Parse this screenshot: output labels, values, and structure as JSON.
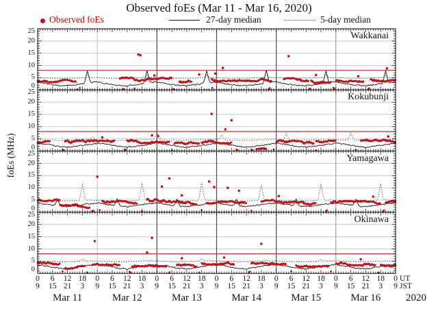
{
  "header": {
    "title": "Observed foEs (Mar 11 - Mar 16, 2020)"
  },
  "legend": {
    "observed_label": "Observed foEs",
    "median27_label": "27-day median",
    "median5_label": "5-day median"
  },
  "axes": {
    "ylabel": "foEs (MHz)",
    "ylim": [
      0,
      25
    ],
    "ytick_values": [
      0,
      5,
      10,
      15,
      20,
      25
    ],
    "ytick_labels": [
      "0",
      "5",
      "10",
      "15",
      "20",
      "25"
    ],
    "xlim_hours": [
      0,
      144
    ],
    "ut_row": [
      "0",
      "6",
      "12",
      "18",
      "0",
      "6",
      "12",
      "18",
      "0",
      "6",
      "12",
      "18",
      "0",
      "6",
      "12",
      "18",
      "0",
      "6",
      "12",
      "18",
      "0",
      "6",
      "12",
      "18",
      "0"
    ],
    "jst_row": [
      "9",
      "15",
      "21",
      "3",
      "9",
      "15",
      "21",
      "3",
      "9",
      "15",
      "21",
      "3",
      "9",
      "15",
      "21",
      "3",
      "9",
      "15",
      "21",
      "3",
      "9",
      "15",
      "21",
      "3",
      "9"
    ],
    "tz_labels": [
      "UT",
      "JST"
    ],
    "day_labels": [
      "Mar 11",
      "Mar 12",
      "Mar 13",
      "Mar 14",
      "Mar 15",
      "Mar 16"
    ],
    "year": "2020"
  },
  "style": {
    "observed_color": "#c81018",
    "legend_text_color": "#c00000",
    "median27_color": "#111111",
    "median5_color": "#333333",
    "threshold_color": "#ab3535",
    "grid_light": "#cfc6c6",
    "grid_dotted": "#666666",
    "day_line_colors": [
      "#bdbdbd",
      "#4a4a4a",
      "#4a4a4a",
      "#4a4a4a",
      "#8d8d8d"
    ]
  },
  "chart_data": {
    "type": "scatter",
    "title": "Observed foEs (Mar 11 - Mar 16, 2020)",
    "x_range_hours": [
      0,
      144
    ],
    "x_tick_step_hours": 6,
    "y_unit": "MHz",
    "y_range": [
      0,
      25
    ],
    "dotted_gridline_mhz": 5,
    "light_gridlines_mhz": [
      10,
      15,
      20
    ],
    "panels": [
      {
        "station": "Wakkanai",
        "threshold_mhz": 8,
        "median27": {
          "daily_cycle_4h": [
            3.3,
            2.5,
            1.9,
            1.7,
            2.2,
            2.9
          ],
          "spikes": [
            [
              20,
              7.8
            ],
            [
              44,
              7.9
            ],
            [
              68,
              7.8
            ],
            [
              92,
              8.0
            ],
            [
              116,
              7.7
            ],
            [
              140,
              7.8
            ]
          ]
        },
        "median5": {
          "daily_cycle_4h": [
            5.0,
            4.85,
            4.75,
            4.8,
            4.9,
            5.1
          ],
          "spikes": [
            [
              20,
              6.2
            ],
            [
              44,
              6.0
            ],
            [
              68,
              6.1
            ],
            [
              92,
              6.3
            ],
            [
              116,
              6.0
            ],
            [
              140,
              6.1
            ]
          ]
        },
        "observed_bands": [
          [
            0,
            15.5,
            3.2,
            4.3
          ],
          [
            33,
            54,
            3.6,
            5.0
          ],
          [
            57,
            62,
            2.5,
            3.8
          ],
          [
            70,
            94,
            3.6,
            4.7
          ],
          [
            99,
            109,
            3.6,
            4.8
          ],
          [
            110,
            118,
            2.4,
            4.0
          ],
          [
            120,
            131,
            3.4,
            4.4
          ],
          [
            134,
            144,
            3.5,
            4.8
          ]
        ],
        "observed_low": [
          16,
          17,
          34.5,
          39,
          54.5,
          70.3,
          93,
          109.5,
          119,
          133
        ],
        "observed_outliers": [
          [
            40.5,
            14.5
          ],
          [
            41.3,
            14.2
          ],
          [
            74.5,
            9.0
          ],
          [
            101,
            13.8
          ],
          [
            65,
            6.3
          ],
          [
            71.5,
            6.7
          ],
          [
            112,
            6.1
          ],
          [
            140.5,
            8.8
          ],
          [
            47,
            5.9
          ],
          [
            129,
            5.6
          ]
        ]
      },
      {
        "station": "Kokubunji",
        "threshold_mhz": 8,
        "median27": {
          "daily_cycle_4h": [
            3.2,
            2.8,
            2.0,
            1.6,
            2.1,
            2.6
          ],
          "spikes": [
            [
              48,
              4.3
            ]
          ]
        },
        "median5": {
          "daily_cycle_4h": [
            4.7,
            4.5,
            4.35,
            4.4,
            4.55,
            4.7
          ],
          "spikes": [
            [
              22,
              5.8
            ],
            [
              48,
              7.8
            ],
            [
              74,
              6.6
            ],
            [
              100,
              7.3
            ],
            [
              126,
              7.4
            ]
          ]
        },
        "observed_bands": [
          [
            0,
            5,
            3.0,
            4.1
          ],
          [
            11,
            31,
            2.8,
            4.4
          ],
          [
            36,
            53,
            3.3,
            4.7
          ],
          [
            55,
            65,
            2.9,
            3.9
          ],
          [
            66,
            78,
            3.1,
            4.3
          ],
          [
            88,
            92,
            0.2,
            1.2
          ],
          [
            96,
            111,
            3.2,
            4.4
          ],
          [
            112,
            120,
            3.6,
            4.6
          ],
          [
            130,
            144,
            3.3,
            4.6
          ]
        ],
        "observed_low": [
          10,
          35,
          54,
          80,
          86,
          95,
          112,
          128
        ],
        "observed_outliers": [
          [
            70,
            15.2
          ],
          [
            75.5,
            8.9
          ],
          [
            78,
            12.6
          ],
          [
            46,
            6.4
          ],
          [
            48.5,
            6.1
          ],
          [
            141,
            6.0
          ],
          [
            26,
            5.6
          ]
        ]
      },
      {
        "station": "Yamagawa",
        "threshold_mhz": null,
        "median27": {
          "daily_cycle_4h": [
            3.8,
            3.2,
            2.6,
            2.3,
            2.8,
            3.4
          ],
          "spikes": [
            [
              8,
              5.2
            ],
            [
              32,
              5.5
            ],
            [
              56,
              5.3
            ],
            [
              80,
              5.2
            ],
            [
              104,
              5.4
            ],
            [
              128,
              5.3
            ]
          ]
        },
        "median5": {
          "daily_cycle_4h": [
            4.9,
            4.7,
            4.5,
            4.6,
            4.75,
            5.0
          ],
          "spikes": [
            [
              18,
              11.6
            ],
            [
              42,
              11.9
            ],
            [
              66,
              12.4
            ],
            [
              90,
              11.2
            ],
            [
              114,
              11.6
            ],
            [
              138,
              11.8
            ]
          ]
        },
        "observed_bands": [
          [
            0,
            9,
            3.8,
            5.2
          ],
          [
            9,
            16,
            2.8,
            4.2
          ],
          [
            16,
            21,
            0.5,
            2.5
          ],
          [
            26,
            40,
            3.6,
            4.8
          ],
          [
            44,
            58,
            3.9,
            5.6
          ],
          [
            58,
            64,
            2.8,
            4.4
          ],
          [
            68,
            84,
            3.6,
            4.9
          ],
          [
            90,
            107,
            3.9,
            5.4
          ],
          [
            107,
            112,
            2.6,
            4.2
          ],
          [
            118,
            138,
            3.4,
            4.6
          ],
          [
            140,
            144,
            4.0,
            5.2
          ]
        ],
        "observed_low": [
          22,
          25,
          42,
          66,
          86,
          116,
          139
        ],
        "observed_outliers": [
          [
            24,
            14.5
          ],
          [
            50,
            10.5
          ],
          [
            53,
            13.8
          ],
          [
            69,
            12.6
          ],
          [
            71,
            10.3
          ],
          [
            76.5,
            10.0
          ],
          [
            81,
            8.8
          ],
          [
            58,
            6.9
          ],
          [
            97,
            6.6
          ],
          [
            135,
            6.4
          ]
        ]
      },
      {
        "station": "Okinawa",
        "threshold_mhz": 8,
        "median27": {
          "daily_cycle_4h": [
            3.6,
            3.0,
            2.2,
            1.8,
            2.5,
            3.2
          ],
          "spikes": []
        },
        "median5": {
          "daily_cycle_4h": [
            5.1,
            4.9,
            4.7,
            4.75,
            4.95,
            5.15
          ],
          "spikes": [
            [
              18,
              5.9
            ],
            [
              66,
              6.0
            ],
            [
              114,
              5.8
            ]
          ]
        },
        "observed_bands": [
          [
            0,
            9,
            3.2,
            4.4
          ],
          [
            11,
            19,
            1.8,
            3.0
          ],
          [
            22,
            33,
            3.4,
            4.9
          ],
          [
            38,
            52,
            2.9,
            4.1
          ],
          [
            56,
            64,
            2.6,
            3.6
          ],
          [
            66,
            79,
            3.6,
            5.0
          ],
          [
            86,
            100,
            3.2,
            4.4
          ],
          [
            104,
            117,
            2.8,
            4.0
          ],
          [
            120,
            136,
            3.3,
            4.6
          ],
          [
            138,
            144,
            2.9,
            4.0
          ]
        ],
        "observed_low": [
          10,
          20,
          37,
          53,
          65,
          85,
          102,
          118,
          137
        ],
        "observed_outliers": [
          [
            23,
            13.2
          ],
          [
            46,
            14.5
          ],
          [
            44,
            8.6
          ],
          [
            90,
            12.1
          ],
          [
            58,
            6.2
          ],
          [
            130,
            5.8
          ],
          [
            75,
            6.5
          ]
        ]
      }
    ]
  }
}
